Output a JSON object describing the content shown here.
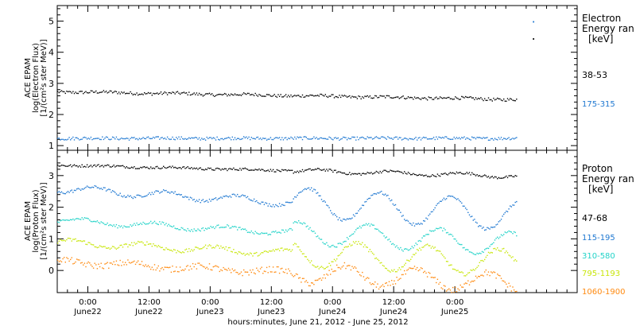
{
  "chart_data": [
    {
      "type": "scatter",
      "title": "",
      "ylabel_lines": [
        "ACE EPAM",
        "log(Electron Flux)",
        "[1/(cm²s ster MeV)]"
      ],
      "ylim": [
        0.85,
        5.5
      ],
      "yticks": [
        1,
        2,
        3,
        4,
        5
      ],
      "legend_title": [
        "Electron",
        "Energy ran",
        "[keV]"
      ],
      "series": [
        {
          "name": "38-53",
          "color": "#000000",
          "base": 2.75,
          "trend": -0.25,
          "noise": 0.05,
          "wave": 0.06
        },
        {
          "name": "175-315",
          "color": "#1f78d1",
          "base": 1.25,
          "trend": 0.0,
          "noise": 0.05,
          "wave": 0.03
        }
      ],
      "outliers": [
        {
          "x": 87.3,
          "y": 5.0,
          "color": "#1f78d1"
        },
        {
          "x": 87.3,
          "y": 4.45,
          "color": "#000000"
        }
      ]
    },
    {
      "type": "scatter",
      "title": "",
      "ylabel_lines": [
        "ACE EPAM",
        "log(Proton Flux)",
        "[1/(cm²s ster MeV)]"
      ],
      "ylim": [
        -0.7,
        3.8
      ],
      "yticks": [
        0,
        1,
        2,
        3
      ],
      "legend_title": [
        "Proton",
        "Energy ran",
        "[keV]"
      ],
      "series": [
        {
          "name": "47-68",
          "color": "#000000",
          "base": 3.35,
          "trend": -0.35,
          "noise": 0.04,
          "wave": 0.05
        },
        {
          "name": "115-195",
          "color": "#1f78d1",
          "base": 2.6,
          "trend": -0.85,
          "noise": 0.05,
          "wave": 0.4
        },
        {
          "name": "310-580",
          "color": "#22d3c8",
          "base": 1.6,
          "trend": -0.75,
          "noise": 0.05,
          "wave": 0.3
        },
        {
          "name": "795-1193",
          "color": "#c8e60a",
          "base": 0.9,
          "trend": -0.65,
          "noise": 0.06,
          "wave": 0.35
        },
        {
          "name": "1060-1900",
          "color": "#ff8a10",
          "base": 0.3,
          "trend": -0.7,
          "noise": 0.1,
          "wave": 0.25
        }
      ]
    }
  ],
  "x_axis": {
    "xlim": [
      -6,
      96
    ],
    "data_end": 84,
    "ticks": [
      {
        "x": 0,
        "time": "0:00",
        "date": "June22"
      },
      {
        "x": 12,
        "time": "12:00",
        "date": "June22"
      },
      {
        "x": 24,
        "time": "0:00",
        "date": "June23"
      },
      {
        "x": 36,
        "time": "12:00",
        "date": "June23"
      },
      {
        "x": 48,
        "time": "0:00",
        "date": "June24"
      },
      {
        "x": 60,
        "time": "12:00",
        "date": "June24"
      },
      {
        "x": 72,
        "time": "0:00",
        "date": "June25"
      }
    ],
    "minor_step": 2,
    "label": "hours:minutes, June 21, 2012 - June 25, 2012"
  }
}
